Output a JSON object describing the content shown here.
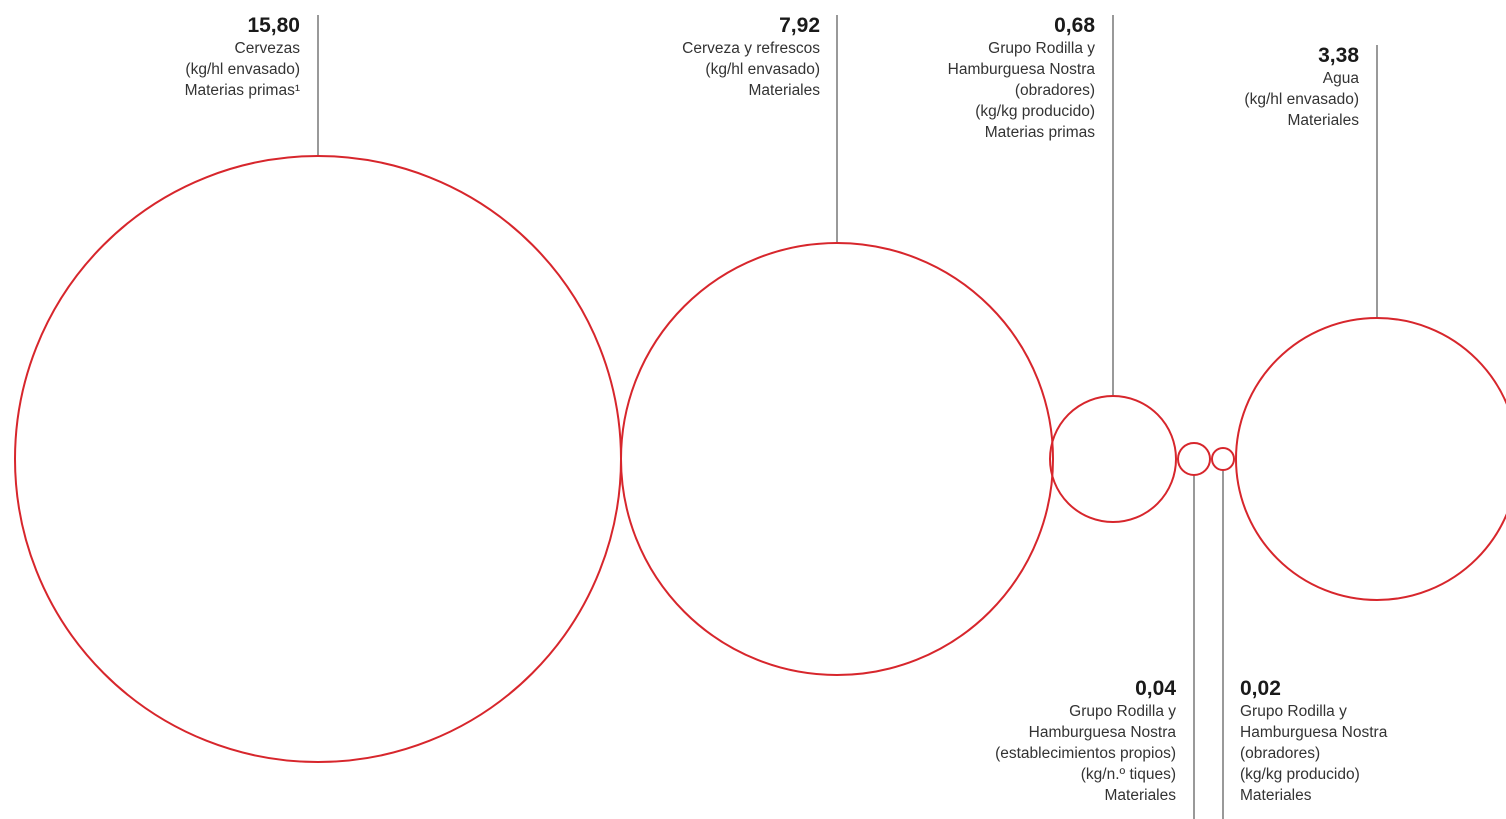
{
  "chart_data": {
    "type": "bubble",
    "accent_color": "#d7262c",
    "line_color": "#333333",
    "bubbles": [
      {
        "id": "cervezas",
        "value": 15.8,
        "value_label": "15,80",
        "lines": [
          "Cervezas",
          "(kg/hl envasado)",
          "Materias primas¹"
        ]
      },
      {
        "id": "cerveza-refrescos",
        "value": 7.92,
        "value_label": "7,92",
        "lines": [
          "Cerveza y refrescos",
          "(kg/hl envasado)",
          "Materiales"
        ]
      },
      {
        "id": "rodilla-obradores-mp",
        "value": 0.68,
        "value_label": "0,68",
        "lines": [
          "Grupo Rodilla y",
          "Hamburguesa Nostra",
          "(obradores)",
          "(kg/kg producido)",
          "Materias primas"
        ]
      },
      {
        "id": "rodilla-establecimientos",
        "value": 0.04,
        "value_label": "0,04",
        "lines": [
          "Grupo Rodilla y",
          "Hamburguesa Nostra",
          "(establecimientos propios)",
          "(kg/n.º tiques)",
          "Materiales"
        ]
      },
      {
        "id": "rodilla-obradores-mat",
        "value": 0.02,
        "value_label": "0,02",
        "lines": [
          "Grupo Rodilla y",
          "Hamburguesa Nostra",
          "(obradores)",
          "(kg/kg producido)",
          "Materiales"
        ]
      },
      {
        "id": "agua",
        "value": 3.38,
        "value_label": "3,38",
        "lines": [
          "Agua",
          "(kg/hl envasado)",
          "Materiales"
        ]
      }
    ]
  }
}
